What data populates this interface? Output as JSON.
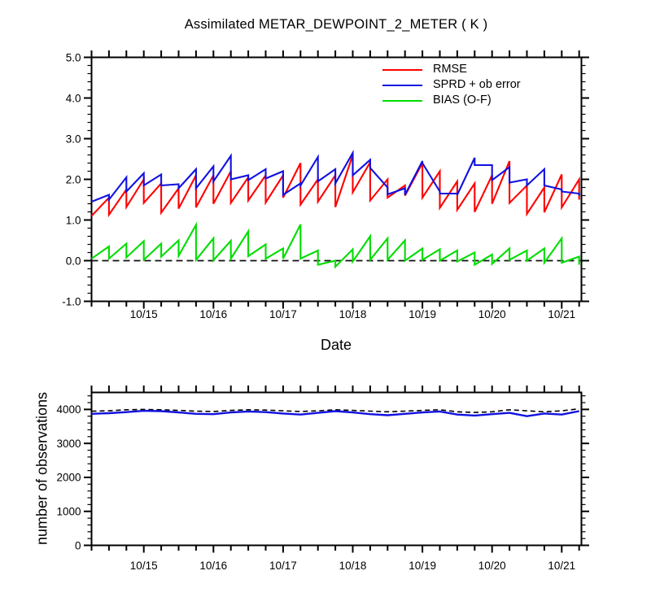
{
  "title": "Assimilated METAR_DEWPOINT_2_METER ( K )",
  "legend": {
    "items": [
      {
        "label": "RMSE",
        "color": "#ff0000"
      },
      {
        "label": "SPRD + ob error",
        "color": "#1111e0"
      },
      {
        "label": "BIAS (O-F)",
        "color": "#00dd00"
      }
    ]
  },
  "chart_data": [
    {
      "panel": "top",
      "type": "line",
      "title": "Assimilated METAR_DEWPOINT_2_METER ( K )",
      "xlabel": "Date",
      "x_tick_labels": [
        "10/15",
        "10/16",
        "10/17",
        "10/18",
        "10/19",
        "10/20",
        "10/21"
      ],
      "steps_per_day": 4,
      "steps_before_first_label": 3,
      "n_steps": 29,
      "ylim": [
        -1.0,
        5.0
      ],
      "y_major": 1.0,
      "y_minor": 0.2,
      "y_tick_labels": [
        "-1.0",
        "0.0",
        "1.0",
        "2.0",
        "3.0",
        "4.0",
        "5.0"
      ],
      "zero_line": true,
      "grid": false,
      "legend_position": "top-right-inside",
      "series": [
        {
          "name": "RMSE",
          "color": "#ff0000",
          "style": "sawtooth",
          "start": 1.1,
          "prior": [
            1.55,
            1.75,
            2.0,
            1.9,
            1.78,
            2.1,
            2.1,
            2.2,
            2.05,
            2.1,
            2.1,
            2.4,
            2.0,
            2.1,
            2.6,
            2.42,
            2.0,
            1.85,
            2.4,
            2.2,
            1.95,
            1.9,
            2.1,
            2.45,
            1.85,
            1.8,
            2.12,
            2.0
          ],
          "post": [
            1.13,
            1.32,
            1.42,
            1.18,
            1.28,
            1.31,
            1.4,
            1.42,
            1.48,
            1.43,
            1.55,
            1.38,
            1.45,
            1.32,
            1.68,
            1.48,
            1.55,
            1.6,
            1.55,
            1.3,
            1.25,
            1.2,
            1.4,
            1.42,
            1.15,
            1.19,
            1.31,
            1.5
          ]
        },
        {
          "name": "SPRD + ob error",
          "color": "#1111e0",
          "style": "sawtooth",
          "start": 1.45,
          "prior": [
            1.62,
            2.05,
            2.15,
            2.12,
            1.88,
            2.25,
            2.32,
            2.58,
            2.1,
            2.25,
            2.2,
            1.9,
            2.55,
            2.25,
            2.65,
            2.48,
            1.8,
            1.78,
            2.45,
            1.7,
            1.65,
            2.53,
            2.35,
            2.3,
            2.0,
            2.25,
            1.75,
            1.65
          ],
          "post": [
            1.5,
            1.7,
            1.85,
            1.85,
            1.78,
            1.78,
            1.95,
            2.0,
            1.98,
            2.02,
            1.62,
            1.85,
            1.95,
            1.9,
            2.1,
            2.28,
            1.63,
            1.62,
            2.4,
            1.65,
            1.62,
            2.35,
            1.98,
            1.92,
            1.85,
            1.85,
            1.7,
            1.6
          ]
        },
        {
          "name": "BIAS (O-F)",
          "color": "#00dd00",
          "style": "sawtooth",
          "start": 0.05,
          "prior": [
            0.35,
            0.42,
            0.48,
            0.42,
            0.5,
            0.88,
            0.55,
            0.49,
            0.72,
            0.4,
            0.3,
            0.89,
            0.25,
            0.0,
            0.28,
            0.6,
            0.55,
            0.5,
            0.3,
            0.28,
            0.25,
            0.2,
            0.15,
            0.3,
            0.25,
            0.3,
            0.55,
            0.1
          ],
          "post": [
            0.05,
            0.08,
            0.02,
            0.1,
            0.12,
            0.02,
            0.01,
            0.05,
            0.11,
            0.05,
            0.05,
            0.05,
            -0.1,
            -0.15,
            -0.02,
            0.02,
            0.02,
            0.0,
            0.02,
            0.0,
            -0.02,
            -0.1,
            -0.08,
            0.02,
            0.0,
            -0.05,
            -0.05,
            -0.1
          ]
        }
      ]
    },
    {
      "panel": "bottom",
      "type": "line",
      "ylabel": "number of observations",
      "x_tick_labels": [
        "10/15",
        "10/16",
        "10/17",
        "10/18",
        "10/19",
        "10/20",
        "10/21"
      ],
      "steps_per_day": 4,
      "steps_before_first_label": 3,
      "n_steps": 29,
      "ylim": [
        0,
        4500
      ],
      "y_major": 1000,
      "y_minor": 200,
      "y_tick_labels": [
        "0",
        "1000",
        "2000",
        "3000",
        "4000"
      ],
      "grid": false,
      "series": [
        {
          "name": "black_dashed",
          "color": "#000000",
          "style": "values",
          "dashed": true,
          "values": [
            3950,
            3960,
            3990,
            4000,
            3990,
            3970,
            3950,
            3940,
            3970,
            3990,
            3980,
            3960,
            3940,
            3960,
            3990,
            3970,
            3950,
            3930,
            3950,
            3970,
            3990,
            3930,
            3910,
            3930,
            3990,
            3960,
            3930,
            3960,
            4020
          ]
        },
        {
          "name": "blue_solid",
          "color": "#1111e0",
          "style": "values",
          "dashed": false,
          "values": [
            3870,
            3890,
            3920,
            3960,
            3950,
            3910,
            3870,
            3860,
            3910,
            3940,
            3920,
            3880,
            3850,
            3900,
            3950,
            3910,
            3860,
            3830,
            3870,
            3910,
            3940,
            3850,
            3820,
            3860,
            3900,
            3800,
            3880,
            3850,
            3950
          ]
        }
      ]
    }
  ]
}
